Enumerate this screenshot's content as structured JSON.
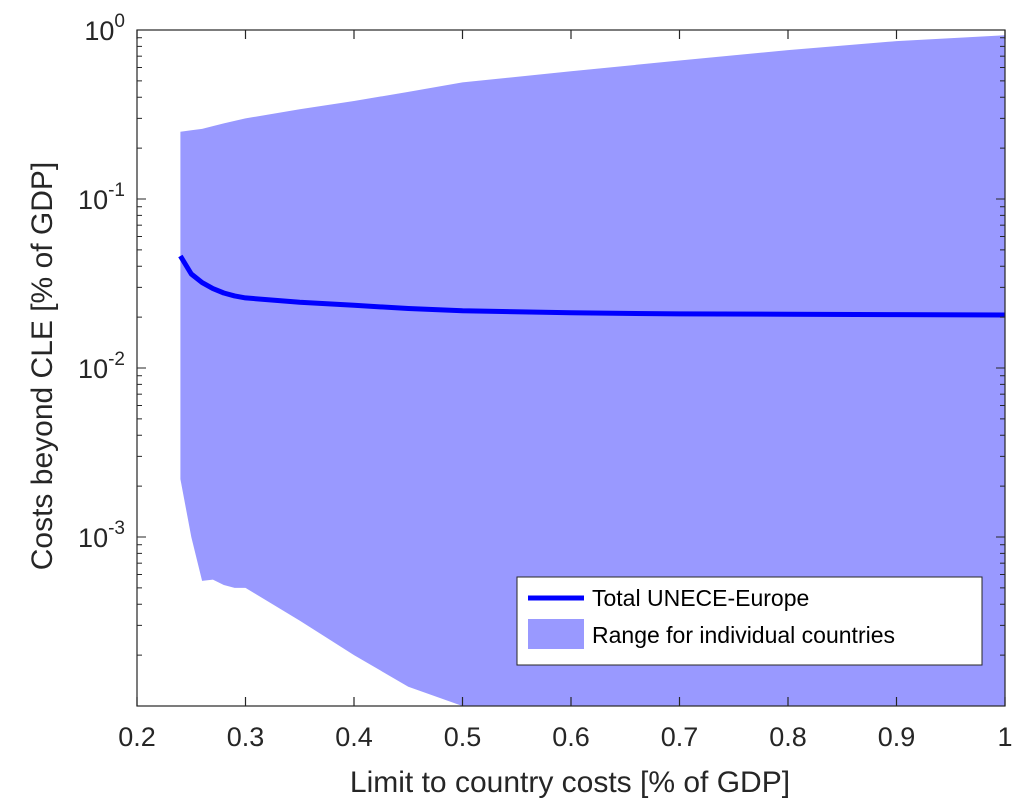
{
  "chart_data": {
    "type": "area",
    "xlabel": "Limit to country costs [% of GDP]",
    "ylabel": "Costs beyond CLE [% of GDP]",
    "xlim": [
      0.2,
      1.0
    ],
    "ylim": [
      0.0001,
      1
    ],
    "y_scale": "log",
    "grid": false,
    "legend_position": "bottom-right",
    "x_ticks": [
      {
        "value": 0.2,
        "label": "0.2"
      },
      {
        "value": 0.3,
        "label": "0.3"
      },
      {
        "value": 0.4,
        "label": "0.4"
      },
      {
        "value": 0.5,
        "label": "0.5"
      },
      {
        "value": 0.6,
        "label": "0.6"
      },
      {
        "value": 0.7,
        "label": "0.7"
      },
      {
        "value": 0.8,
        "label": "0.8"
      },
      {
        "value": 0.9,
        "label": "0.9"
      },
      {
        "value": 1.0,
        "label": "1"
      }
    ],
    "y_ticks": [
      {
        "value": 0.001,
        "base": "10",
        "exp": "-3"
      },
      {
        "value": 0.01,
        "base": "10",
        "exp": "-2"
      },
      {
        "value": 0.1,
        "base": "10",
        "exp": "-1"
      },
      {
        "value": 1,
        "base": "10",
        "exp": "0"
      }
    ],
    "series": [
      {
        "name": "Total UNECE-Europe",
        "kind": "line",
        "color": "#0000ff",
        "x": [
          0.24,
          0.25,
          0.26,
          0.27,
          0.28,
          0.29,
          0.3,
          0.35,
          0.4,
          0.45,
          0.5,
          0.6,
          0.7,
          0.8,
          0.9,
          1.0
        ],
        "y": [
          0.046,
          0.036,
          0.032,
          0.0295,
          0.0278,
          0.0267,
          0.026,
          0.0245,
          0.0235,
          0.0225,
          0.0218,
          0.0212,
          0.0209,
          0.0208,
          0.0207,
          0.0206
        ]
      },
      {
        "name": "Range for individual countries",
        "kind": "band",
        "color": "#9999ff",
        "x": [
          0.24,
          0.25,
          0.26,
          0.27,
          0.28,
          0.29,
          0.3,
          0.35,
          0.4,
          0.45,
          0.5,
          0.6,
          0.7,
          0.8,
          0.9,
          1.0
        ],
        "upper": [
          0.25,
          0.255,
          0.26,
          0.27,
          0.28,
          0.29,
          0.3,
          0.34,
          0.38,
          0.43,
          0.49,
          0.57,
          0.66,
          0.76,
          0.86,
          0.93
        ],
        "lower": [
          0.0022,
          0.001,
          0.00055,
          0.00056,
          0.00052,
          0.0005,
          0.0005,
          0.00032,
          0.0002,
          0.00013,
          0.0001,
          0.0001,
          0.0001,
          0.0001,
          0.0001,
          0.0001
        ]
      }
    ]
  }
}
